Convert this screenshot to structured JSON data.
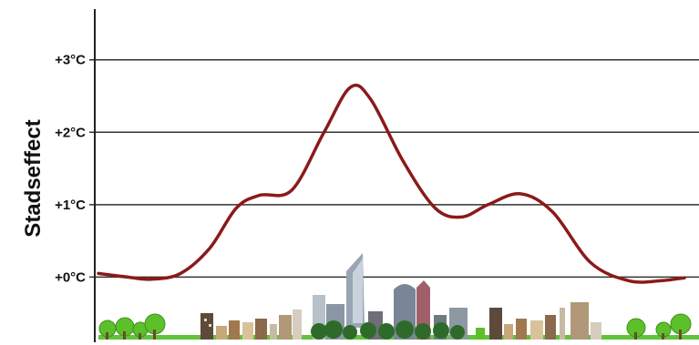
{
  "chart_data": {
    "type": "line",
    "title": "",
    "xlabel": "",
    "ylabel": "Stadseffect",
    "y_unit": "°C",
    "ylim": [
      -0.9,
      3.7
    ],
    "yticks": [
      {
        "value": 0,
        "label": "+0°C"
      },
      {
        "value": 1,
        "label": "+1°C"
      },
      {
        "value": 2,
        "label": "+2°C"
      },
      {
        "value": 3,
        "label": "+3°C"
      }
    ],
    "grid": true,
    "legend": "none",
    "series": [
      {
        "color": "#8b1a1a",
        "points": [
          {
            "x": 0.0,
            "y": 0.05
          },
          {
            "x": 0.05,
            "y": 0.0
          },
          {
            "x": 0.09,
            "y": -0.03
          },
          {
            "x": 0.14,
            "y": 0.05
          },
          {
            "x": 0.19,
            "y": 0.4
          },
          {
            "x": 0.235,
            "y": 0.95
          },
          {
            "x": 0.275,
            "y": 1.13
          },
          {
            "x": 0.33,
            "y": 1.2
          },
          {
            "x": 0.385,
            "y": 2.0
          },
          {
            "x": 0.43,
            "y": 2.62
          },
          {
            "x": 0.465,
            "y": 2.45
          },
          {
            "x": 0.52,
            "y": 1.6
          },
          {
            "x": 0.575,
            "y": 0.95
          },
          {
            "x": 0.62,
            "y": 0.83
          },
          {
            "x": 0.665,
            "y": 1.0
          },
          {
            "x": 0.72,
            "y": 1.15
          },
          {
            "x": 0.775,
            "y": 0.9
          },
          {
            "x": 0.84,
            "y": 0.2
          },
          {
            "x": 0.905,
            "y": -0.05
          },
          {
            "x": 0.96,
            "y": -0.05
          },
          {
            "x": 1.0,
            "y": -0.01
          }
        ]
      }
    ],
    "background_illustration": "city-skyline-with-trees"
  },
  "colors": {
    "line": "#8b1a1a",
    "grid": "#333333",
    "tree": "#5cc02a",
    "grass": "#62c23a",
    "building_light": "#c8b9a4",
    "building_dark": "#5d4a3a",
    "tower": "#9aa5b4"
  }
}
